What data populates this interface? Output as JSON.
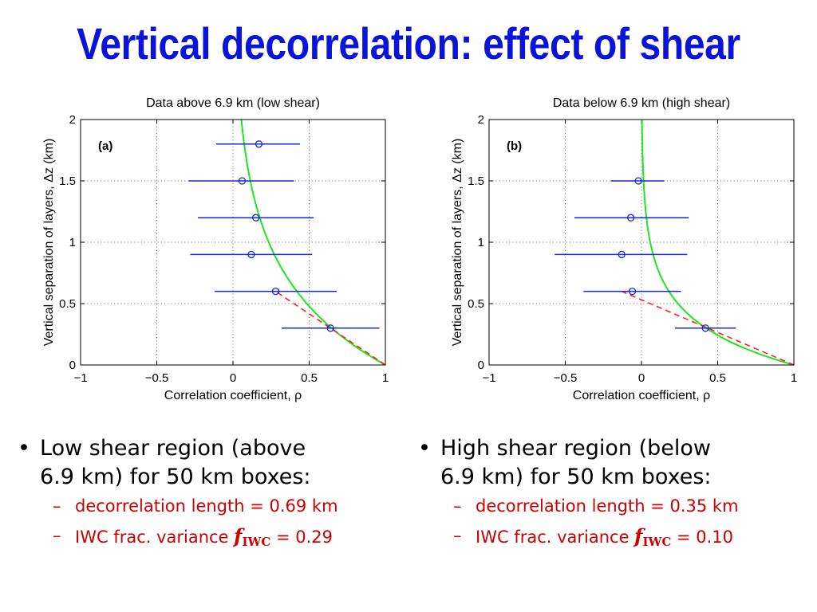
{
  "title": "Vertical decorrelation: effect of shear",
  "colors": {
    "title": "#0a14d8",
    "fit": "#1ee61e",
    "dashed": "#ff2020",
    "points": "#1428dc",
    "sub_text": "#d00000"
  },
  "chart_data": [
    {
      "type": "scatter",
      "title": "Data above 6.9 km (low shear)",
      "panel_label": "(a)",
      "xlabel": "Correlation coefficient, ρ",
      "ylabel": "Vertical separation of layers, Δz (km)",
      "xlim": [
        -1,
        1
      ],
      "ylim": [
        0,
        2
      ],
      "xticks": [
        -1,
        -0.5,
        0,
        0.5,
        1
      ],
      "xtick_labels": [
        "−1",
        "−0.5",
        "0",
        "0.5",
        "1"
      ],
      "yticks": [
        0,
        0.5,
        1,
        1.5,
        2
      ],
      "ytick_labels": [
        "0",
        "0.5",
        "1",
        "1.5",
        "2"
      ],
      "grid": true,
      "points": [
        {
          "y": 0.3,
          "x": 0.64,
          "xmin": 0.32,
          "xmax": 0.96
        },
        {
          "y": 0.6,
          "x": 0.28,
          "xmin": -0.12,
          "xmax": 0.68
        },
        {
          "y": 0.9,
          "x": 0.12,
          "xmin": -0.28,
          "xmax": 0.52
        },
        {
          "y": 1.2,
          "x": 0.15,
          "xmin": -0.23,
          "xmax": 0.53
        },
        {
          "y": 1.5,
          "x": 0.06,
          "xmin": -0.29,
          "xmax": 0.4
        },
        {
          "y": 1.8,
          "x": 0.17,
          "xmin": -0.11,
          "xmax": 0.44
        }
      ],
      "decorrelation_length_km": 0.69,
      "dashed_line": {
        "x": [
          1,
          0.28
        ],
        "y": [
          0,
          0.6
        ]
      }
    },
    {
      "type": "scatter",
      "title": "Data below 6.9 km (high shear)",
      "panel_label": "(b)",
      "xlabel": "Correlation coefficient, ρ",
      "ylabel": "Vertical separation of layers, Δz (km)",
      "xlim": [
        -1,
        1
      ],
      "ylim": [
        0,
        2
      ],
      "xticks": [
        -1,
        -0.5,
        0,
        0.5,
        1
      ],
      "xtick_labels": [
        "−1",
        "−0.5",
        "0",
        "0.5",
        "1"
      ],
      "yticks": [
        0,
        0.5,
        1,
        1.5,
        2
      ],
      "ytick_labels": [
        "0",
        "0.5",
        "1",
        "1.5",
        "2"
      ],
      "grid": true,
      "points": [
        {
          "y": 0.3,
          "x": 0.42,
          "xmin": 0.22,
          "xmax": 0.62
        },
        {
          "y": 0.6,
          "x": -0.06,
          "xmin": -0.38,
          "xmax": 0.26
        },
        {
          "y": 0.9,
          "x": -0.13,
          "xmin": -0.57,
          "xmax": 0.3
        },
        {
          "y": 1.2,
          "x": -0.07,
          "xmin": -0.44,
          "xmax": 0.31
        },
        {
          "y": 1.5,
          "x": -0.02,
          "xmin": -0.2,
          "xmax": 0.15
        }
      ],
      "decorrelation_length_km": 0.35,
      "dashed_line": {
        "x": [
          1,
          -0.13
        ],
        "y": [
          0,
          0.6
        ]
      }
    }
  ],
  "bullets": [
    {
      "mark": "•",
      "line1": "Low shear region (above",
      "line2": "6.9 km) for 50 km boxes:",
      "subs": [
        {
          "dash": "–",
          "text": "decorrelation length = 0.69 km"
        },
        {
          "dash": "–",
          "pre": "IWC frac. variance ",
          "sym": "f",
          "symsub": "IWC",
          "post": " = 0.29"
        }
      ]
    },
    {
      "mark": "•",
      "line1": "High shear region (below",
      "line2": "6.9 km) for 50 km boxes:",
      "subs": [
        {
          "dash": "–",
          "text": "decorrelation length = 0.35 km"
        },
        {
          "dash": "–",
          "pre": "IWC frac. variance ",
          "sym": "f",
          "symsub": "IWC",
          "post": " = 0.10"
        }
      ]
    }
  ]
}
